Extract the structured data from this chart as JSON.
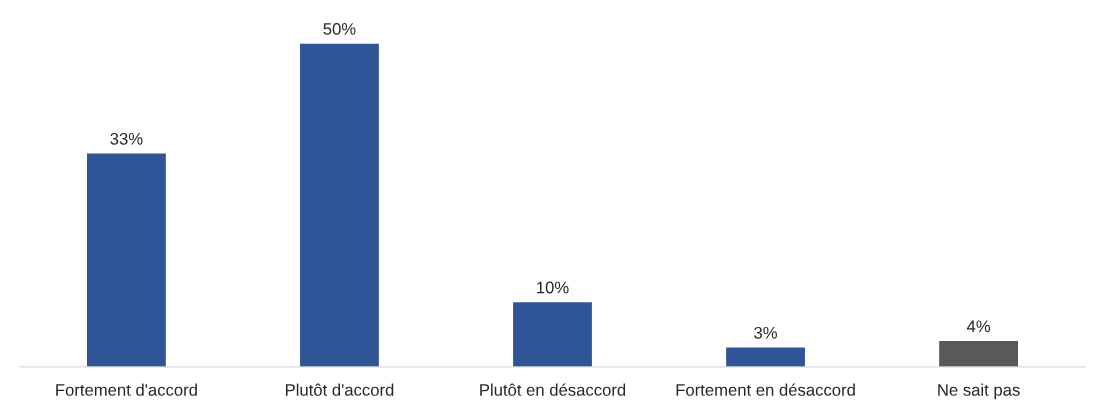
{
  "chart_data": {
    "type": "bar",
    "categories": [
      "Fortement d'accord",
      "Plutôt d'accord",
      "Plutôt en désaccord",
      "Fortement en désaccord",
      "Ne sait pas"
    ],
    "values": [
      33,
      50,
      10,
      3,
      4
    ],
    "colors": [
      "#2f5597",
      "#2f5597",
      "#2f5597",
      "#2f5597",
      "#595959"
    ],
    "value_labels": [
      "33%",
      "50%",
      "10%",
      "3%",
      "4%"
    ],
    "grid": false,
    "legend": false
  }
}
